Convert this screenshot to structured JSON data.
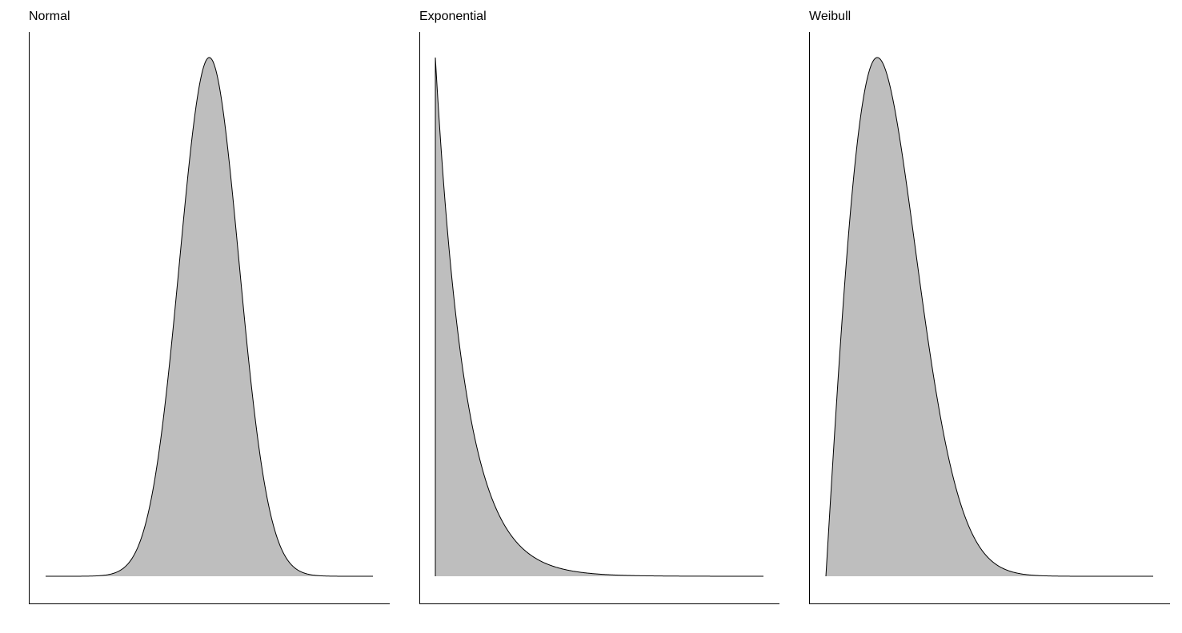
{
  "chart_data": [
    {
      "type": "area",
      "title": "Normal",
      "xlabel": "",
      "ylabel": "",
      "distribution": "normal",
      "params": {
        "mean": 0,
        "sd": 1
      },
      "xlim": [
        -5.5,
        5.5
      ],
      "ylim": [
        0,
        1
      ],
      "y_normalized": true,
      "curve_x_range": [
        -5.5,
        5.5
      ],
      "fill_color": "#bebebe",
      "line_color": "#000000",
      "grid": false,
      "axis_ticks": false
    },
    {
      "type": "area",
      "title": "Exponential",
      "xlabel": "",
      "ylabel": "",
      "distribution": "exponential",
      "params": {
        "rate": 1
      },
      "xlim": [
        0,
        11
      ],
      "ylim": [
        0,
        1
      ],
      "y_normalized": true,
      "curve_x_range": [
        0,
        11
      ],
      "fill_color": "#bebebe",
      "line_color": "#000000",
      "grid": false,
      "axis_ticks": false
    },
    {
      "type": "area",
      "title": "Weibull",
      "xlabel": "",
      "ylabel": "",
      "distribution": "weibull",
      "params": {
        "shape": 2,
        "scale": 1
      },
      "xlim": [
        0,
        4.5
      ],
      "ylim": [
        0,
        1
      ],
      "y_normalized": true,
      "curve_x_range": [
        0,
        4.5
      ],
      "fill_color": "#bebebe",
      "line_color": "#000000",
      "grid": false,
      "axis_ticks": false
    }
  ]
}
